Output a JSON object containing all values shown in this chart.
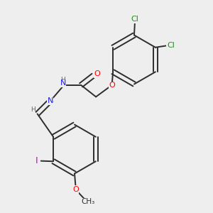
{
  "bg_color": "#eeeeee",
  "bond_color": "#2d2d2d",
  "atom_colors": {
    "Cl": "#228B22",
    "O": "#FF0000",
    "N": "#1a1aFF",
    "H": "#606060",
    "I": "#CC00CC",
    "C": "#2d2d2d"
  },
  "font_size": 8.0,
  "bond_width": 1.4
}
